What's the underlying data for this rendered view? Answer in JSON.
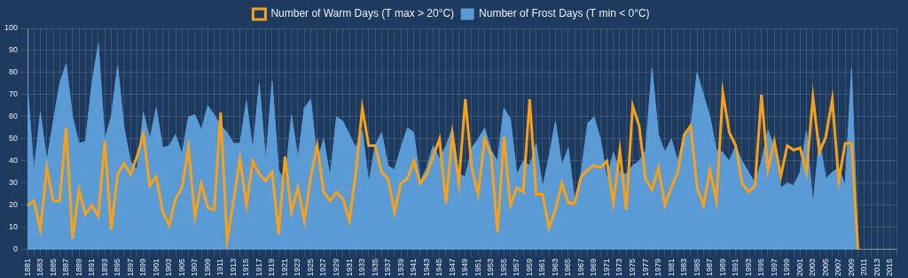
{
  "chart_data": {
    "type": "line",
    "categories": [
      "1881",
      null,
      "1883",
      null,
      "1885",
      null,
      "1887",
      null,
      "1889",
      null,
      "1891",
      null,
      "1893",
      null,
      "1895",
      null,
      "1897",
      null,
      "1899",
      null,
      "1901",
      null,
      "1903",
      null,
      "1905",
      null,
      "1907",
      null,
      "1909",
      null,
      "1911",
      null,
      "1913",
      null,
      "1915",
      null,
      "1917",
      null,
      "1919",
      null,
      "1921",
      null,
      "1923",
      null,
      "1925",
      null,
      "1927",
      null,
      "1929",
      null,
      "1931",
      null,
      "1933",
      null,
      "1935",
      null,
      "1937",
      null,
      "1939",
      null,
      "1941",
      null,
      "1943",
      null,
      "1945",
      null,
      "1947",
      null,
      "1949",
      null,
      "1951",
      null,
      "1953",
      null,
      "1955",
      null,
      "1957",
      null,
      "1959",
      null,
      "1961",
      null,
      "1963",
      null,
      "1965",
      null,
      "1967",
      null,
      "1969",
      null,
      "1971",
      null,
      "1973",
      null,
      "1975",
      null,
      "1977",
      null,
      "1979",
      null,
      "1981",
      null,
      "1983",
      null,
      "1985",
      null,
      "1987",
      null,
      "1989",
      null,
      "1991",
      null,
      "1993",
      null,
      "1995",
      null,
      "1997",
      null,
      "1999",
      null,
      "2001",
      null,
      "2003",
      null,
      "2005",
      null,
      "2007",
      null,
      "2009",
      null,
      "2011",
      null,
      "2013",
      null,
      "2015",
      null
    ],
    "series": [
      {
        "name": "Number of Frost Days (T min < 0°C)",
        "type": "area",
        "color": "#5b9bd5",
        "values": [
          74,
          35,
          62,
          40,
          58,
          75,
          84,
          60,
          48,
          49,
          75,
          93,
          50,
          60,
          83,
          55,
          40,
          36,
          62,
          50,
          64,
          46,
          47,
          52,
          43,
          60,
          61,
          54,
          65,
          61,
          56,
          53,
          48,
          48,
          67,
          45,
          75,
          40,
          76,
          36,
          30,
          61,
          41,
          64,
          68,
          40,
          50,
          33,
          60,
          58,
          52,
          46,
          54,
          30,
          47,
          53,
          38,
          36,
          46,
          55,
          53,
          31,
          37,
          47,
          41,
          47,
          55,
          34,
          33,
          46,
          50,
          55,
          45,
          40,
          64,
          59,
          34,
          40,
          38,
          48,
          28,
          42,
          58,
          38,
          46,
          22,
          35,
          57,
          60,
          50,
          32,
          44,
          35,
          34,
          38,
          40,
          45,
          82,
          52,
          44,
          50,
          40,
          52,
          55,
          80,
          70,
          60,
          45,
          44,
          40,
          47,
          40,
          35,
          30,
          40,
          54,
          46,
          28,
          30,
          29,
          35,
          54,
          20,
          50,
          32,
          35,
          37,
          29,
          82,
          0,
          null,
          null,
          null,
          null,
          null,
          null
        ]
      },
      {
        "name": "Number of Warm Days (T max > 20°C)",
        "type": "line",
        "color": "#f5a11c",
        "values": [
          20,
          22,
          9,
          37,
          22,
          22,
          55,
          5,
          27,
          16,
          20,
          15,
          49,
          9,
          34,
          39,
          34,
          42,
          52,
          29,
          33,
          17,
          11,
          23,
          28,
          46,
          15,
          30,
          19,
          18,
          62,
          4,
          22,
          41,
          20,
          40,
          34,
          31,
          35,
          7,
          42,
          17,
          28,
          13,
          33,
          47,
          26,
          22,
          26,
          23,
          13,
          35,
          64,
          47,
          47,
          35,
          32,
          17,
          30,
          32,
          40,
          30,
          34,
          42,
          50,
          21,
          52,
          30,
          68,
          37,
          25,
          50,
          43,
          8,
          51,
          20,
          28,
          26,
          68,
          25,
          25,
          10,
          18,
          30,
          21,
          21,
          33,
          36,
          38,
          37,
          40,
          21,
          45,
          18,
          65,
          56,
          32,
          27,
          37,
          20,
          28,
          35,
          52,
          56,
          28,
          20,
          36,
          22,
          71,
          53,
          47,
          30,
          26,
          29,
          70,
          36,
          49,
          33,
          47,
          45,
          46,
          35,
          69,
          44,
          51,
          68,
          31,
          48,
          48,
          0,
          null,
          null,
          null,
          null,
          null,
          null
        ]
      }
    ],
    "ylim": [
      0,
      100
    ],
    "yticks": [
      0,
      10,
      20,
      30,
      40,
      50,
      60,
      70,
      80,
      90,
      100
    ],
    "grid": true,
    "legend": "top"
  }
}
